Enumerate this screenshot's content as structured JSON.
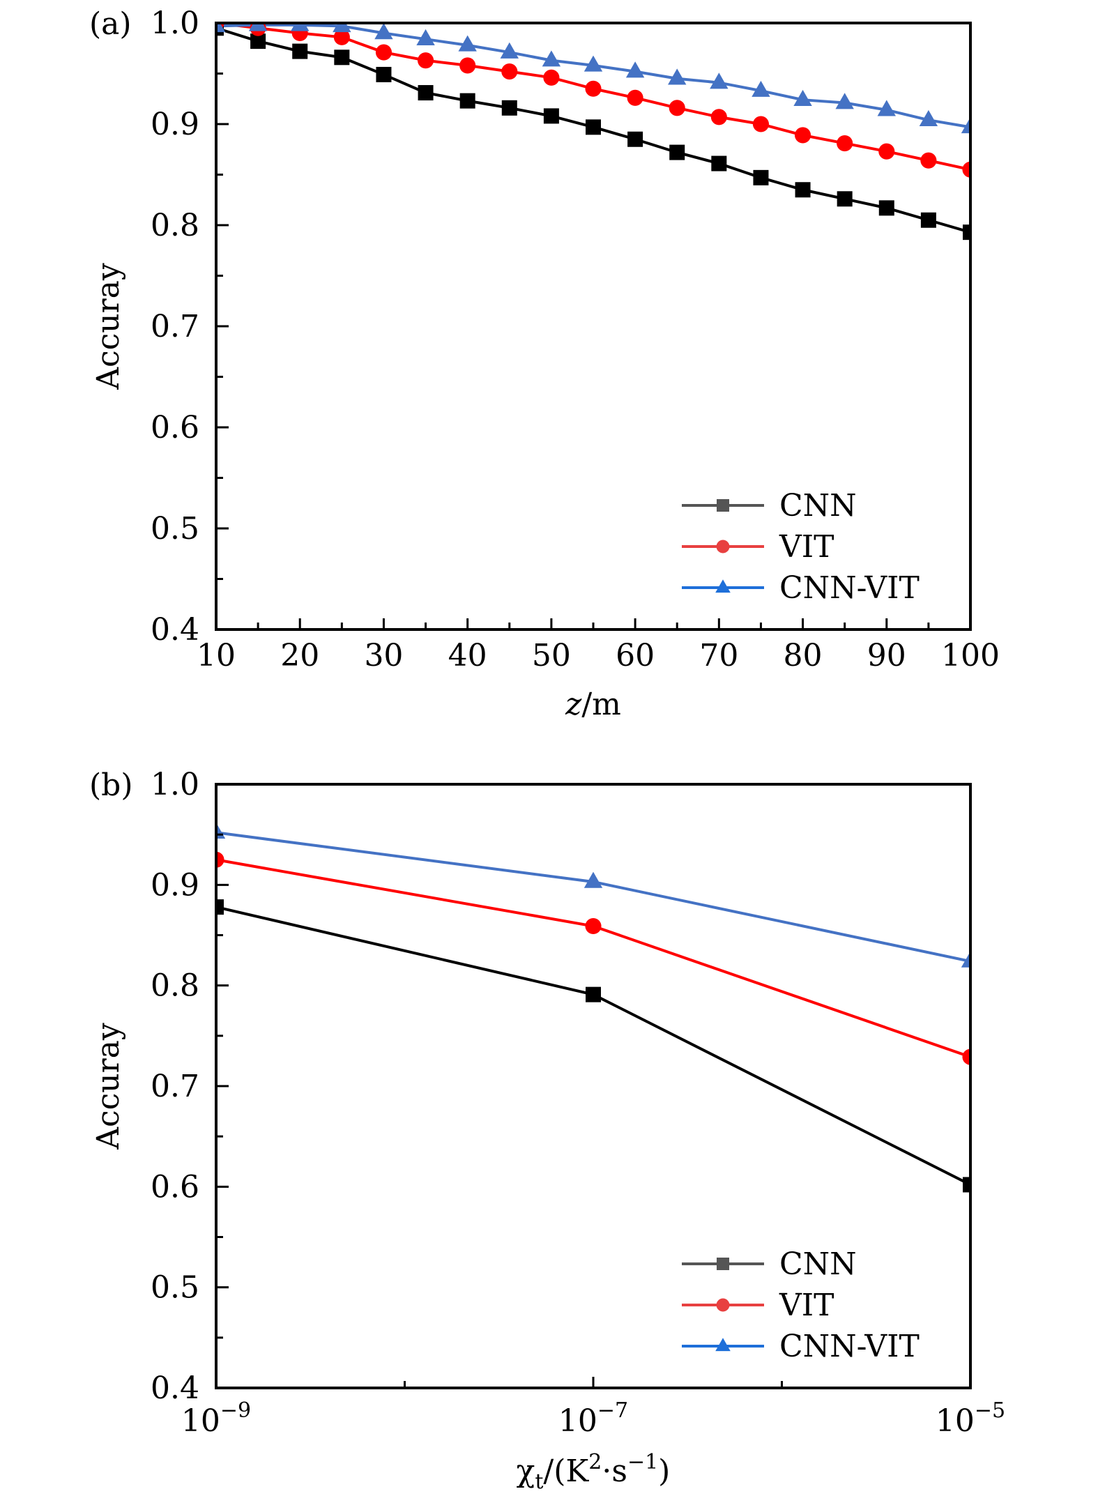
{
  "chart_data": [
    {
      "type": "line",
      "panel_label": "(a)",
      "title": "",
      "xlabel_italic": "z",
      "xlabel_rest": "/m",
      "ylabel": "Accuray",
      "xlim": [
        10,
        100
      ],
      "ylim": [
        0.4,
        1.0
      ],
      "xscale": "linear",
      "x_ticks": [
        10,
        20,
        30,
        40,
        50,
        60,
        70,
        80,
        90,
        100
      ],
      "x_tick_labels": [
        "10",
        "20",
        "30",
        "40",
        "50",
        "60",
        "70",
        "80",
        "90",
        "100"
      ],
      "y_ticks": [
        0.4,
        0.5,
        0.6,
        0.7,
        0.8,
        0.9,
        1.0
      ],
      "y_tick_labels": [
        "0.4",
        "0.5",
        "0.6",
        "0.7",
        "0.8",
        "0.9",
        "1.0"
      ],
      "grid": false,
      "legend_position": "bottom-right",
      "x": [
        10,
        15,
        20,
        25,
        30,
        35,
        40,
        45,
        50,
        55,
        60,
        65,
        70,
        75,
        80,
        85,
        90,
        95,
        100
      ],
      "series": [
        {
          "name": "CNN",
          "marker": "square",
          "color": "#000000",
          "legend_color": "#555555",
          "values": [
            0.995,
            0.982,
            0.972,
            0.966,
            0.949,
            0.931,
            0.923,
            0.916,
            0.908,
            0.897,
            0.885,
            0.872,
            0.861,
            0.847,
            0.835,
            0.826,
            0.817,
            0.805,
            0.793
          ]
        },
        {
          "name": "VIT",
          "marker": "circle",
          "color": "#ff0000",
          "legend_color": "#e84040",
          "values": [
            1.0,
            0.995,
            0.99,
            0.986,
            0.971,
            0.963,
            0.958,
            0.952,
            0.946,
            0.935,
            0.926,
            0.916,
            0.907,
            0.9,
            0.889,
            0.881,
            0.873,
            0.864,
            0.855
          ]
        },
        {
          "name": "CNN-VIT",
          "marker": "triangle",
          "color": "#4472c4",
          "legend_color": "#1e6fd9",
          "values": [
            0.997,
            0.998,
            0.998,
            0.997,
            0.99,
            0.984,
            0.978,
            0.971,
            0.963,
            0.958,
            0.952,
            0.945,
            0.941,
            0.933,
            0.924,
            0.921,
            0.914,
            0.904,
            0.897
          ]
        }
      ]
    },
    {
      "type": "line",
      "panel_label": "(b)",
      "title": "",
      "xlabel": "χt/(K²·s⁻¹)",
      "xlabel_parts": {
        "chi": "χ",
        "sub": "t",
        "open": "/(K",
        "sup1": "2",
        "mid": "·s",
        "sup2": "−1",
        "close": ")"
      },
      "ylabel": "Accuray",
      "xlim": [
        1e-09,
        1e-05
      ],
      "ylim": [
        0.4,
        1.0
      ],
      "xscale": "log",
      "x_ticks": [
        -9,
        -7,
        -5
      ],
      "x_tick_labels": [
        {
          "base": "10",
          "exp": "−9"
        },
        {
          "base": "10",
          "exp": "−7"
        },
        {
          "base": "10",
          "exp": "−5"
        }
      ],
      "y_ticks": [
        0.4,
        0.5,
        0.6,
        0.7,
        0.8,
        0.9,
        1.0
      ],
      "y_tick_labels": [
        "0.4",
        "0.5",
        "0.6",
        "0.7",
        "0.8",
        "0.9",
        "1.0"
      ],
      "grid": false,
      "legend_position": "bottom-right",
      "x": [
        1e-09,
        1e-07,
        1e-05
      ],
      "series": [
        {
          "name": "CNN",
          "marker": "square",
          "color": "#000000",
          "legend_color": "#555555",
          "values": [
            0.878,
            0.791,
            0.602
          ]
        },
        {
          "name": "VIT",
          "marker": "circle",
          "color": "#ff0000",
          "legend_color": "#e84040",
          "values": [
            0.925,
            0.859,
            0.729
          ]
        },
        {
          "name": "CNN-VIT",
          "marker": "triangle",
          "color": "#4472c4",
          "legend_color": "#1e6fd9",
          "values": [
            0.952,
            0.903,
            0.824
          ]
        }
      ]
    }
  ]
}
